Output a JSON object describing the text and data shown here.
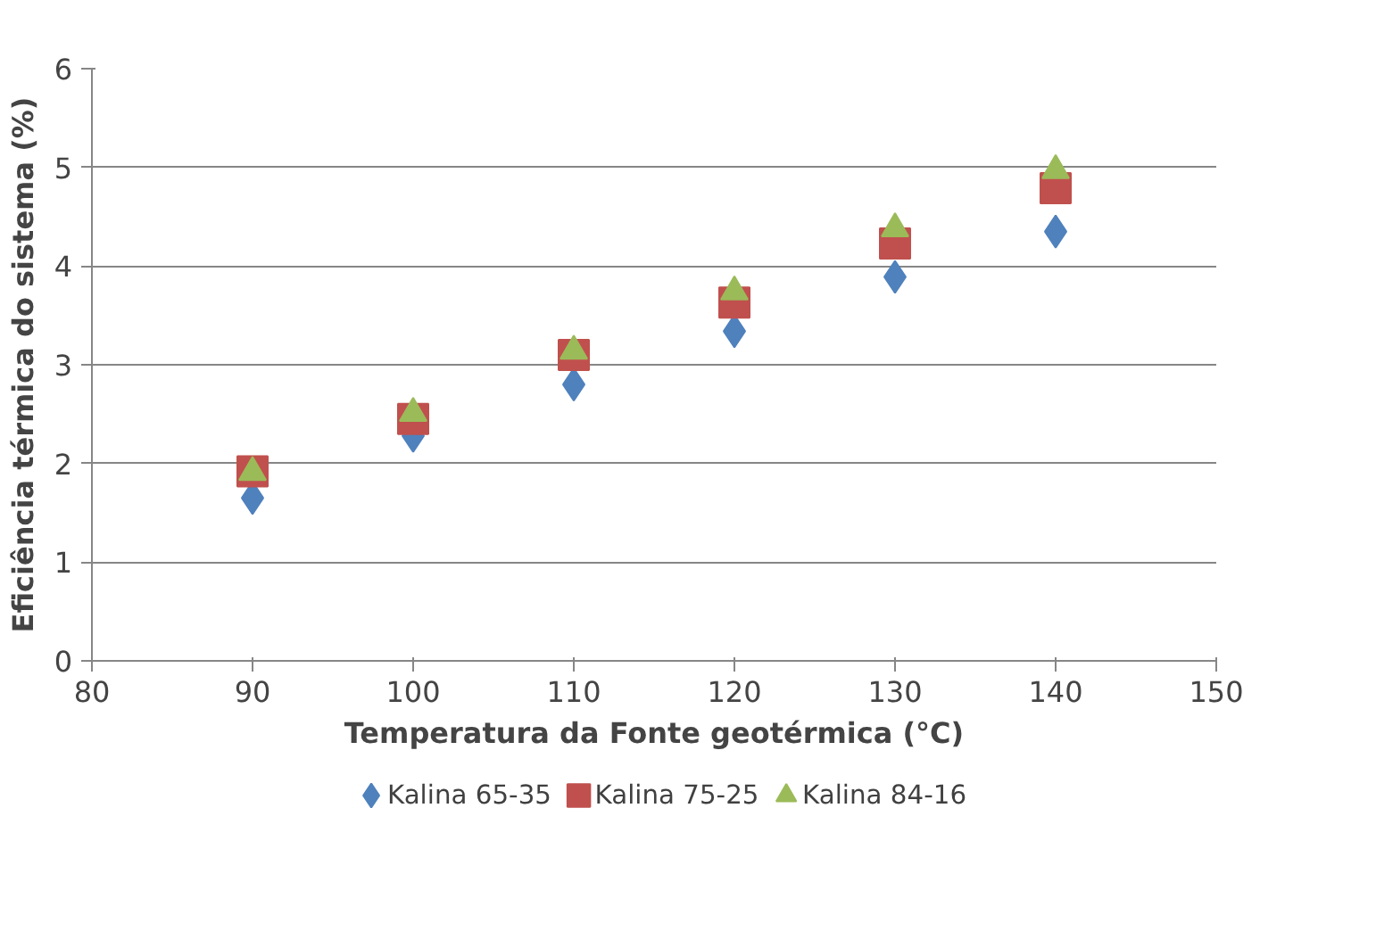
{
  "chart_data": {
    "type": "scatter",
    "xlabel": "Temperatura da Fonte geotérmica (°C)",
    "ylabel": "Eficiência térmica do sistema (%)",
    "x": [
      90,
      100,
      110,
      120,
      130,
      140
    ],
    "series": [
      {
        "name": "Kalina 65-35",
        "color": "#4f81bd",
        "marker": "diamond",
        "values": [
          1.65,
          2.28,
          2.8,
          3.34,
          3.89,
          4.35
        ]
      },
      {
        "name": "Kalina 75-25",
        "color": "#c0504d",
        "marker": "square",
        "values": [
          1.92,
          2.45,
          3.1,
          3.63,
          4.23,
          4.79
        ]
      },
      {
        "name": "Kalina 84-16",
        "color": "#9bbb59",
        "marker": "triangle",
        "values": [
          1.91,
          2.51,
          3.14,
          3.74,
          4.38,
          4.97
        ]
      }
    ],
    "xlim": [
      80,
      150
    ],
    "xticks": [
      80,
      90,
      100,
      110,
      120,
      130,
      140,
      150
    ],
    "ylim": [
      0,
      6
    ],
    "yticks": [
      0,
      1,
      2,
      3,
      4,
      5,
      6
    ],
    "grid": "y",
    "legend": "bottom"
  }
}
